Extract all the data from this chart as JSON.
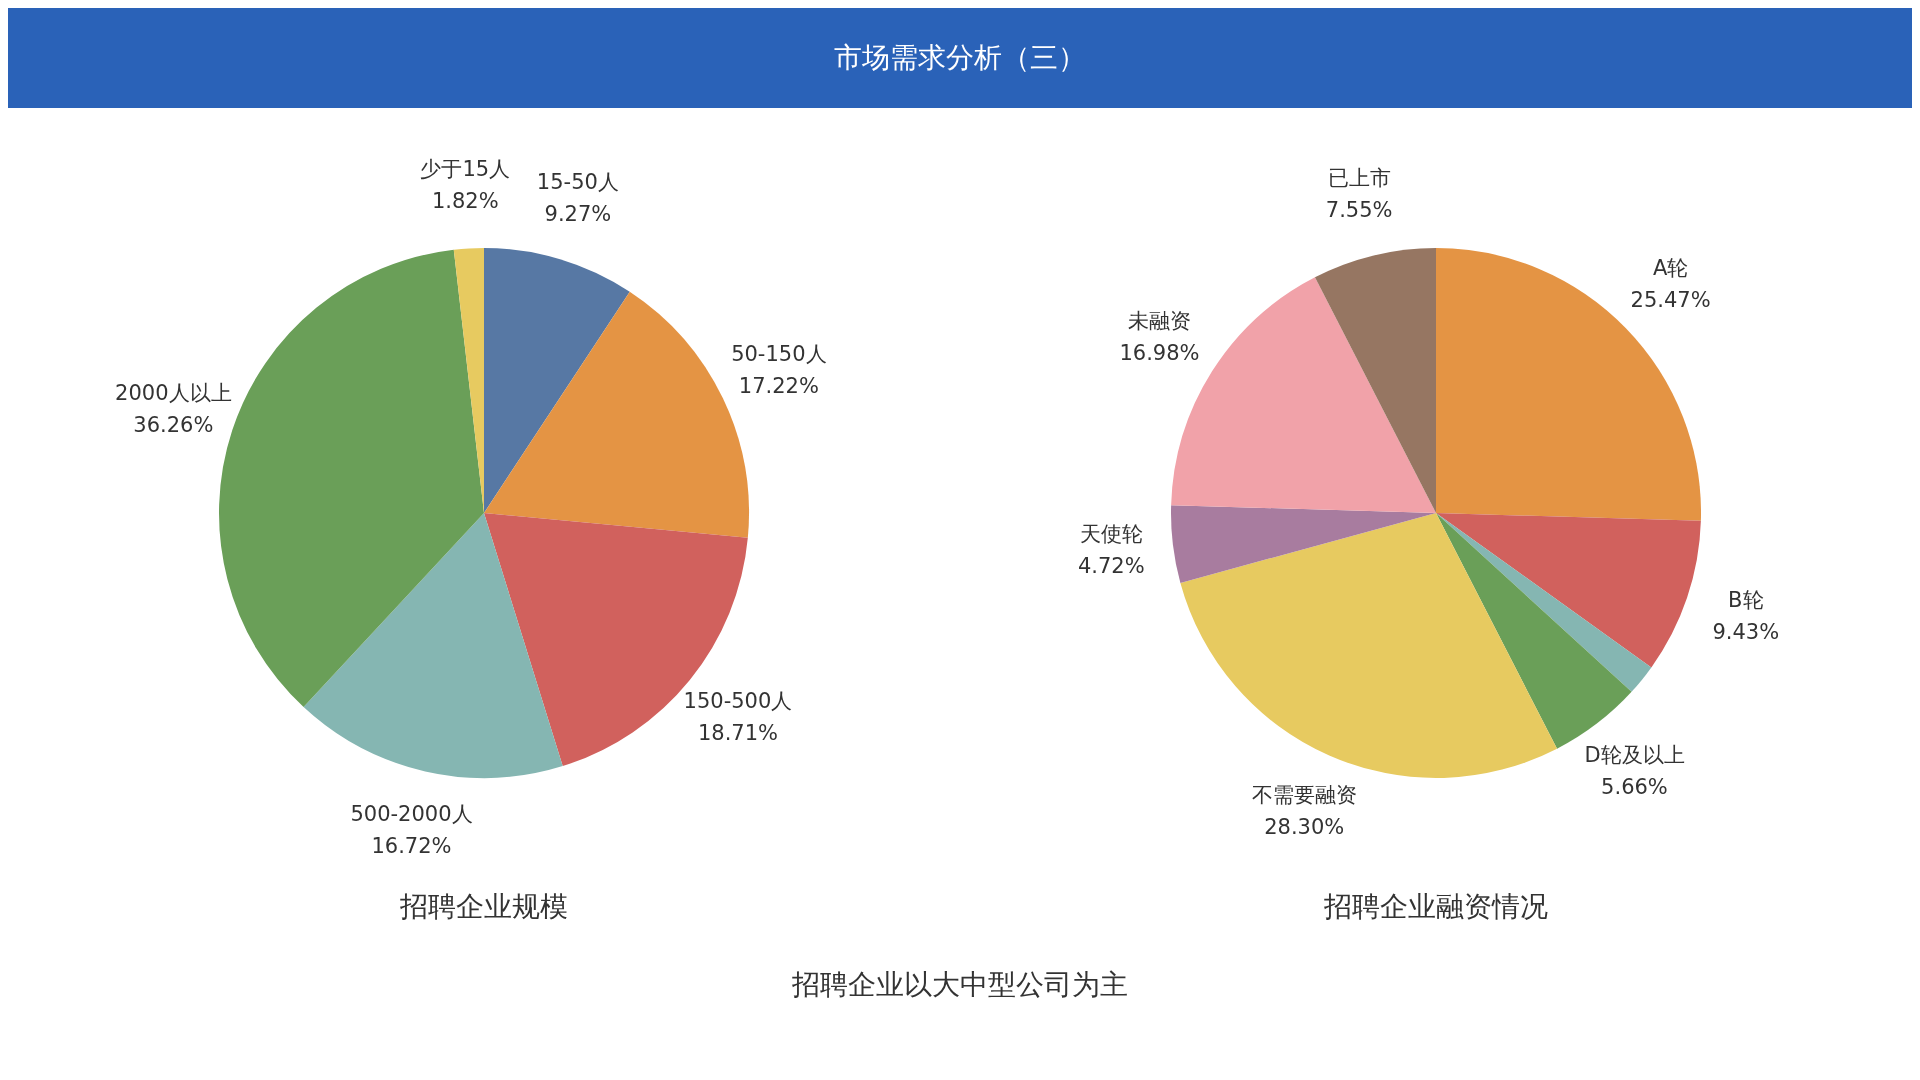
{
  "chart_data": [
    {
      "type": "pie",
      "title": "招聘企业规模",
      "annotations": [
        "市场需求分析（三）"
      ],
      "categories": [
        "15-50人",
        "50-150人",
        "150-500人",
        "500-2000人",
        "2000人以上",
        "少于15人"
      ],
      "values": [
        9.27,
        17.22,
        18.71,
        16.72,
        36.26,
        1.82
      ],
      "value_labels": [
        "9.27%",
        "17.22%",
        "18.71%",
        "16.72%",
        "36.26%",
        "1.82%"
      ],
      "colors": [
        "#5778a4",
        "#e49444",
        "#d1615d",
        "#85b6b2",
        "#6a9f58",
        "#e7ca60"
      ],
      "legend": false
    },
    {
      "type": "pie",
      "title": "招聘企业融资情况",
      "annotations": [
        "招聘企业以大中型公司为主"
      ],
      "categories": [
        "A轮",
        "B轮",
        null,
        "D轮及以上",
        "不需要融资",
        "天使轮",
        "未融资",
        "已上市"
      ],
      "values": [
        25.47,
        9.43,
        1.89,
        5.66,
        28.3,
        4.72,
        16.98,
        7.55
      ],
      "value_labels": [
        "25.47%",
        "9.43%",
        null,
        "5.66%",
        "28.30%",
        "4.72%",
        "16.98%",
        "7.55%"
      ],
      "colors": [
        "#e49444",
        "#d1615d",
        "#85b6b2",
        "#6a9f58",
        "#e7ca60",
        "#a87c9f",
        "#f1a2a9",
        "#967662"
      ],
      "legend": false
    }
  ]
}
